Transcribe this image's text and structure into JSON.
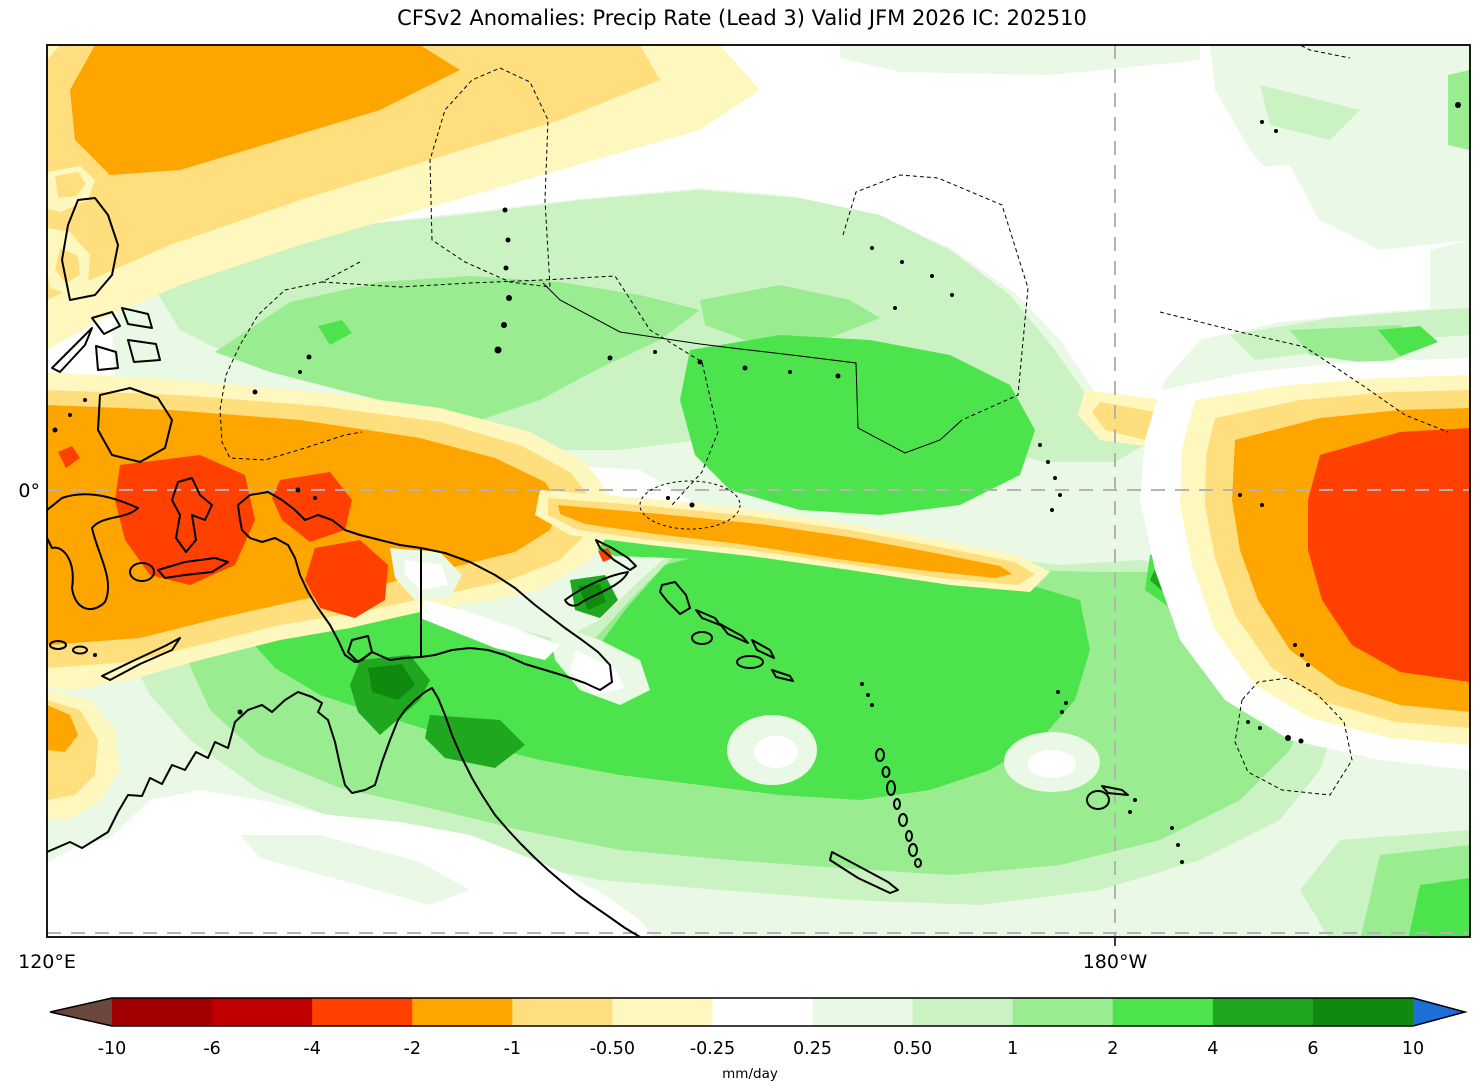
{
  "title": "CFSv2 Anomalies: Precip Rate (Lead 3) Valid JFM 2026 IC: 202510",
  "axes": {
    "y_tick": "0°",
    "x_ticks": [
      "120°E",
      "180°W"
    ]
  },
  "colorbar": {
    "unit": "mm/day",
    "tick_labels": [
      "-10",
      "-6",
      "-4",
      "-2",
      "-1",
      "-0.50",
      "-0.25",
      "0.25",
      "0.50",
      "1",
      "2",
      "4",
      "6",
      "10"
    ],
    "segment_colors": [
      "#A00000",
      "#C00000",
      "#FF4000",
      "#FFA500",
      "#FFDE7D",
      "#FFF8BE",
      "#FFFFFF",
      "#E9F9E5",
      "#CBF2C2",
      "#99EC90",
      "#4DE34D",
      "#1FA81F",
      "#0F8A0F"
    ],
    "under_arrow_color": "#6B463C",
    "over_arrow_color": "#1C6FD6"
  },
  "chart_data": {
    "type": "filled_contour_map",
    "title": "CFSv2 Anomalies: Precip Rate (Lead 3) Valid JFM 2026 IC: 202510",
    "variable": "Precipitation rate anomaly",
    "unit": "mm/day",
    "lead_months": 3,
    "valid_season": "JFM 2026",
    "initial_condition": "202510",
    "domain": {
      "lon_min": "120°E",
      "lon_max": "~160°W",
      "lat_span": "~25°N to ~25°S"
    },
    "gridlines": {
      "equator_dashed": true,
      "dateline_dashed": true
    },
    "contour_levels_mm_day": [
      -10,
      -6,
      -4,
      -2,
      -1,
      -0.5,
      -0.25,
      0.25,
      0.5,
      1,
      2,
      4,
      6,
      10
    ],
    "anomaly_features": [
      {
        "name": "subtropical NW-Pacific dry band",
        "approx_center": {
          "lon": "133°E",
          "lat": "20°N"
        },
        "value_mm_day": "-1 to -2"
      },
      {
        "name": "Maritime Continent / west-equatorial dry core",
        "approx_center": {
          "lon": "128°E",
          "lat": "1°S"
        },
        "value_mm_day": "-2 to -4"
      },
      {
        "name": "New Guinea north-coast dry band",
        "approx_center": {
          "lon": "146°E",
          "lat": "4°S"
        },
        "value_mm_day": "-1 to -4"
      },
      {
        "name": "central equatorial Pacific wet blob",
        "approx_center": {
          "lon": "163°E",
          "lat": "1°N"
        },
        "value_mm_day": "+1 to +2"
      },
      {
        "name": "Coral Sea / Solomon Sea wet core",
        "approx_center": {
          "lon": "150°E",
          "lat": "9°S"
        },
        "value_mm_day": "+2 to +6"
      },
      {
        "name": "broad SW-Pacific wet region",
        "approx_center": {
          "lon": "175°E",
          "lat": "15°S"
        },
        "value_mm_day": "+0.25 to +1"
      },
      {
        "name": "east-Pacific dry core (right edge)",
        "approx_center": {
          "lon": "165°W",
          "lat": "3°S"
        },
        "value_mm_day": "-2 to -4"
      }
    ]
  },
  "geography": {
    "coastline_features": [
      "Philippines",
      "Sulawesi",
      "Halmahera",
      "Seram",
      "Timor",
      "New Guinea",
      "New Britain",
      "New Ireland",
      "Bougainville",
      "Solomon Islands",
      "Australia",
      "Vanuatu",
      "New Caledonia",
      "Fiji",
      "Micronesia island dots"
    ],
    "boundary_style": "dashed EEZ / maritime boundaries"
  }
}
